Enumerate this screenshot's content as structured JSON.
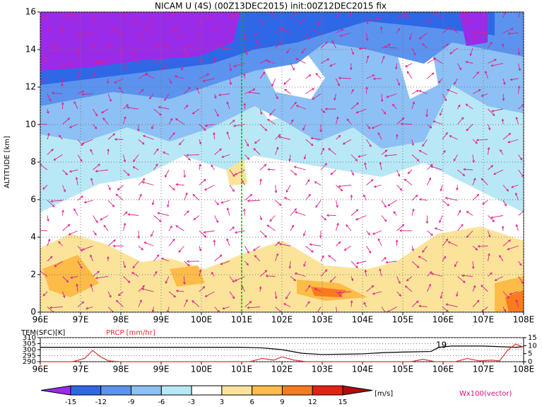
{
  "chart_data": [
    {
      "type": "contour",
      "title": "NICAM U (4S) (00Z13DEC2015) init:00Z12DEC2015 fix",
      "ylabel": "ALTITUDE [km]",
      "xlim": [
        96,
        108
      ],
      "xticks": [
        {
          "value": 96,
          "label": "96E"
        },
        {
          "value": 97,
          "label": "97E"
        },
        {
          "value": 98,
          "label": "98E"
        },
        {
          "value": 99,
          "label": "99E"
        },
        {
          "value": 100,
          "label": "100E"
        },
        {
          "value": 101,
          "label": "101E"
        },
        {
          "value": 102,
          "label": "102E"
        },
        {
          "value": 103,
          "label": "103E"
        },
        {
          "value": 104,
          "label": "104E"
        },
        {
          "value": 105,
          "label": "105E"
        },
        {
          "value": 106,
          "label": "106E"
        },
        {
          "value": 107,
          "label": "107E"
        },
        {
          "value": 108,
          "label": "108E"
        }
      ],
      "ylim": [
        0,
        16
      ],
      "yticks": [
        0,
        2,
        4,
        6,
        8,
        10,
        12,
        14,
        16
      ],
      "grid": true,
      "vline": 101,
      "vline_color": "#00b000"
    },
    {
      "type": "line",
      "xlim": [
        96,
        108
      ],
      "xticks": [
        {
          "value": 96,
          "label": "96E"
        },
        {
          "value": 97,
          "label": "97E"
        },
        {
          "value": 98,
          "label": "98E"
        },
        {
          "value": 99,
          "label": "99E"
        },
        {
          "value": 100,
          "label": "100E"
        },
        {
          "value": 101,
          "label": "101E"
        },
        {
          "value": 102,
          "label": "102E"
        },
        {
          "value": 103,
          "label": "103E"
        },
        {
          "value": 104,
          "label": "104E"
        },
        {
          "value": 105,
          "label": "105E"
        },
        {
          "value": 106,
          "label": "106E"
        },
        {
          "value": 107,
          "label": "107E"
        },
        {
          "value": 108,
          "label": "108E"
        }
      ],
      "ylim": [
        290,
        310
      ],
      "yticks": [
        290,
        295,
        300,
        305,
        310
      ],
      "y2lim": [
        0,
        15
      ],
      "y2ticks": [
        0,
        5,
        10,
        15
      ],
      "grid": true,
      "annotation": "19",
      "series": [
        {
          "name": "TEM(SFC)[K]",
          "color": "#000000",
          "x": [
            96,
            97,
            98,
            99,
            100,
            101,
            101.5,
            102,
            102.5,
            103,
            104,
            104.5,
            105,
            105.7,
            105.9,
            106.2,
            107,
            107.8,
            108
          ],
          "values": [
            302,
            302,
            302,
            302,
            302,
            302,
            301.5,
            300,
            297,
            296,
            296.5,
            297.5,
            298,
            298.5,
            302,
            303,
            303,
            302,
            302.5
          ]
        },
        {
          "name": "PRCP [mm/hr]",
          "color": "#e03030",
          "axis": "y2",
          "x": [
            96,
            96.8,
            97.1,
            97.3,
            97.5,
            97.7,
            98,
            101.2,
            101.5,
            101.8,
            102,
            102.3,
            102.6,
            105.2,
            105.5,
            105.8,
            106.3,
            106.6,
            106.9,
            107.2,
            107.4,
            107.6,
            107.8,
            108
          ],
          "values": [
            0,
            0,
            2,
            7,
            3,
            0.5,
            0,
            0,
            2,
            1,
            3,
            1,
            0,
            0,
            1.5,
            0,
            0,
            2,
            0.5,
            1,
            0.5,
            7,
            11,
            9
          ]
        }
      ]
    },
    {
      "type": "colorbar",
      "levels": [
        -15,
        -12,
        -9,
        -6,
        -3,
        3,
        6,
        9,
        12,
        15
      ],
      "colors": [
        "#9a2be8",
        "#2f68e6",
        "#5b93ee",
        "#8dc0f4",
        "#b8e8f6",
        "#ffffff",
        "#fbe49a",
        "#fdbb48",
        "#fa7a1e",
        "#e42212",
        "#b00c0c",
        "#e8108e"
      ],
      "unit": "[m/s]",
      "note": "Wx100(vector)"
    }
  ]
}
